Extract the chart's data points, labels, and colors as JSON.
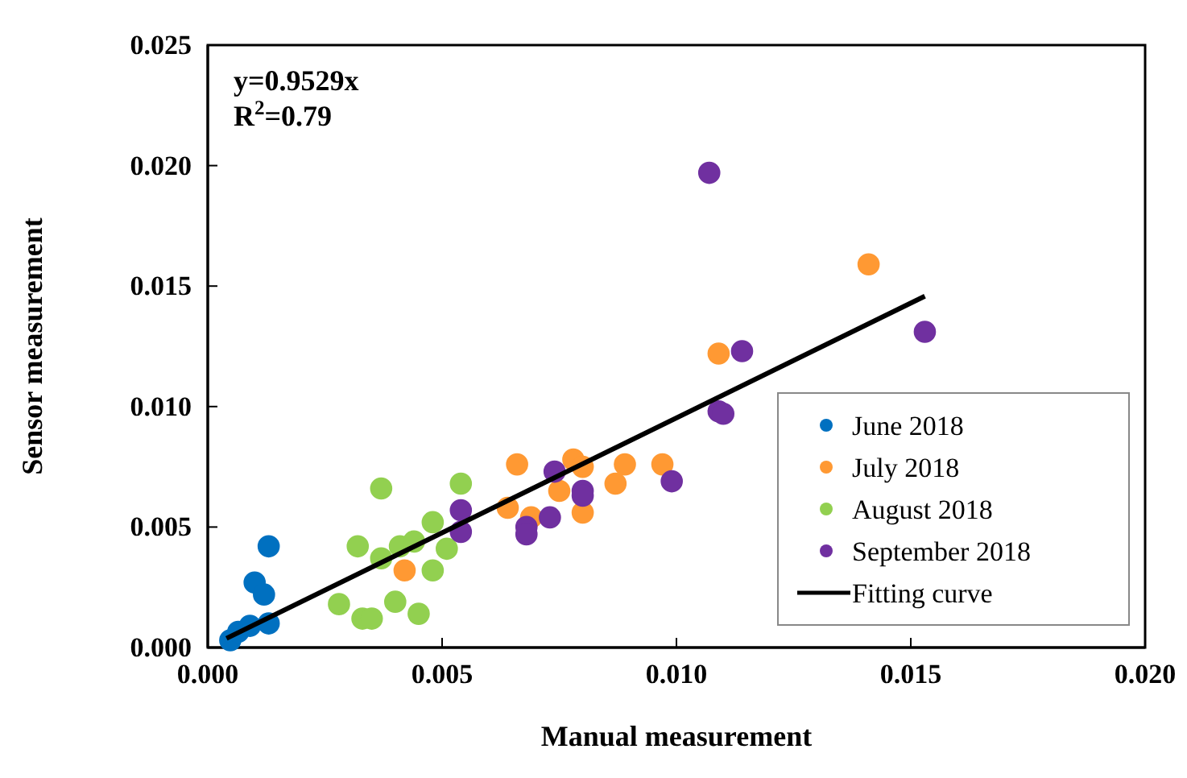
{
  "chart_data": {
    "type": "scatter",
    "xlabel": "Manual measurement",
    "ylabel": "Sensor measurement",
    "xlim": [
      0,
      0.02
    ],
    "xticks": [
      {
        "value": 0,
        "label": "0.000"
      },
      {
        "value": 0.005,
        "label": "0.005"
      },
      {
        "value": 0.01,
        "label": "0.010"
      },
      {
        "value": 0.015,
        "label": "0.015"
      },
      {
        "value": 0.02,
        "label": "0.020"
      }
    ],
    "ylim": [
      0,
      0.025
    ],
    "yticks": [
      {
        "value": 0,
        "label": "0.000"
      },
      {
        "value": 0.005,
        "label": "0.005"
      },
      {
        "value": 0.01,
        "label": "0.010"
      },
      {
        "value": 0.015,
        "label": "0.015"
      },
      {
        "value": 0.02,
        "label": "0.020"
      },
      {
        "value": 0.025,
        "label": "0.025"
      }
    ],
    "grid": false,
    "legend": "bottom right",
    "marker": "circle",
    "annotations": [
      "y=0.9529x",
      "R$^{2}$=0.79"
    ],
    "series": [
      {
        "name": "June 2018",
        "color": "#0070c0",
        "x": [
          0.00048,
          0.00065,
          0.0009,
          0.0013,
          0.001,
          0.0012,
          0.0013
        ],
        "values": [
          0.0003,
          0.00065,
          0.0009,
          0.001,
          0.0027,
          0.0022,
          0.0042
        ]
      },
      {
        "name": "July 2018",
        "color": "#ff9933",
        "x": [
          0.0042,
          0.0066,
          0.0064,
          0.0078,
          0.008,
          0.0075,
          0.0089,
          0.0087,
          0.0097,
          0.008,
          0.0069,
          0.0141,
          0.0109
        ],
        "values": [
          0.0032,
          0.0076,
          0.0058,
          0.0078,
          0.0075,
          0.0065,
          0.0076,
          0.0068,
          0.0076,
          0.0056,
          0.0054,
          0.0159,
          0.0122
        ]
      },
      {
        "name": "August 2018",
        "color": "#92d050",
        "x": [
          0.0037,
          0.0032,
          0.0028,
          0.0033,
          0.0035,
          0.0037,
          0.004,
          0.0041,
          0.0044,
          0.0045,
          0.0048,
          0.0048,
          0.0051,
          0.0054
        ],
        "values": [
          0.0066,
          0.0042,
          0.0018,
          0.0012,
          0.0012,
          0.0037,
          0.0019,
          0.0042,
          0.0044,
          0.0014,
          0.0052,
          0.0032,
          0.0041,
          0.0068
        ]
      },
      {
        "name": "September 2018",
        "color": "#7030a0",
        "x": [
          0.0054,
          0.0054,
          0.0074,
          0.008,
          0.008,
          0.0073,
          0.0068,
          0.0068,
          0.0099,
          0.0109,
          0.0107,
          0.0114,
          0.0153,
          0.011
        ],
        "values": [
          0.0057,
          0.0048,
          0.0073,
          0.0065,
          0.0063,
          0.0054,
          0.005,
          0.0047,
          0.0069,
          0.0098,
          0.0197,
          0.0123,
          0.0131,
          0.0097
        ]
      },
      {
        "name": "Fitting curve",
        "type": "line",
        "color": "#000000",
        "marker": "none",
        "x": [
          0.0004,
          0.0153
        ],
        "values": [
          0.00038,
          0.01458
        ]
      }
    ]
  }
}
